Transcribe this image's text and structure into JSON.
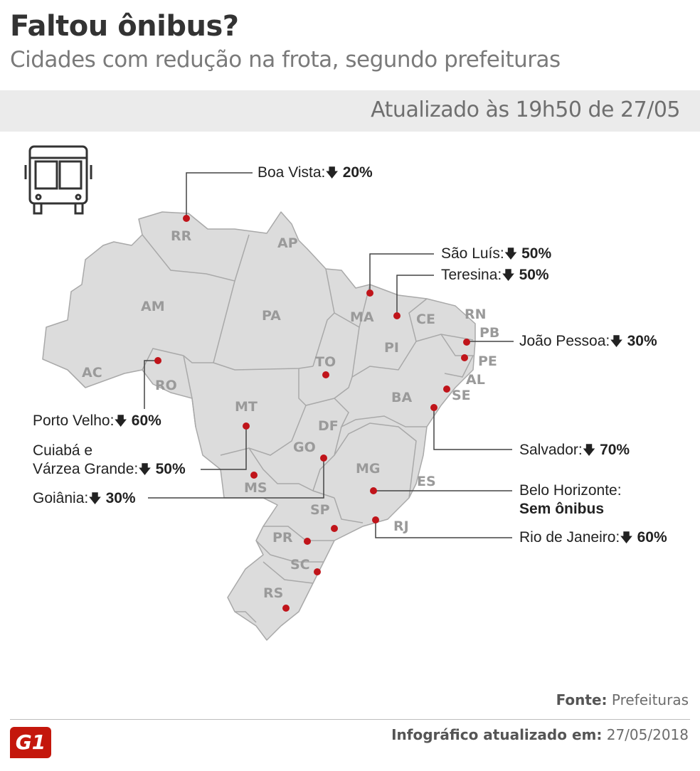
{
  "header": {
    "title": "Faltou ônibus?",
    "subtitle": "Cidades com redução na frota, segundo prefeituras",
    "updated": "Atualizado às 19h50 de 27/05"
  },
  "states": [
    "RR",
    "AP",
    "AM",
    "PA",
    "MA",
    "CE",
    "RN",
    "PB",
    "PE",
    "AL",
    "SE",
    "PI",
    "AC",
    "RO",
    "TO",
    "BA",
    "MT",
    "DF",
    "GO",
    "MG",
    "ES",
    "MS",
    "SP",
    "RJ",
    "PR",
    "SC",
    "RS"
  ],
  "cities": [
    {
      "name": "Boa Vista:",
      "arrow": "🡇",
      "value": "20%"
    },
    {
      "name": "São Luís:",
      "arrow": "🡇",
      "value": "50%"
    },
    {
      "name": "Teresina:",
      "arrow": "🡇",
      "value": "50%"
    },
    {
      "name": "João Pessoa:",
      "arrow": "🡇",
      "value": "30%"
    },
    {
      "name": "Porto Velho:",
      "arrow": "🡇",
      "value": "60%"
    },
    {
      "name": "Cuiabá e",
      "name2": "Várzea Grande:",
      "arrow": "🡇",
      "value": "50%"
    },
    {
      "name": "Salvador:",
      "arrow": "🡇",
      "value": "70%"
    },
    {
      "name": "Goiânia:",
      "arrow": "🡇",
      "value": "30%"
    },
    {
      "name": "Belo Horizonte:",
      "value": "Sem ônibus"
    },
    {
      "name": "Rio de Janeiro:",
      "arrow": "🡇",
      "value": "60%"
    }
  ],
  "footer": {
    "source_label": "Fonte:",
    "source": "Prefeituras",
    "updated_label": "Infográfico atualizado em:",
    "updated_date": "27/05/2018",
    "logo": "G1"
  },
  "colors": {
    "map_fill": "#dcdcdc",
    "border": "#a9a9a9",
    "dot": "#c0141a",
    "label": "#9a9a9a"
  },
  "icons": [
    "bus-icon"
  ]
}
